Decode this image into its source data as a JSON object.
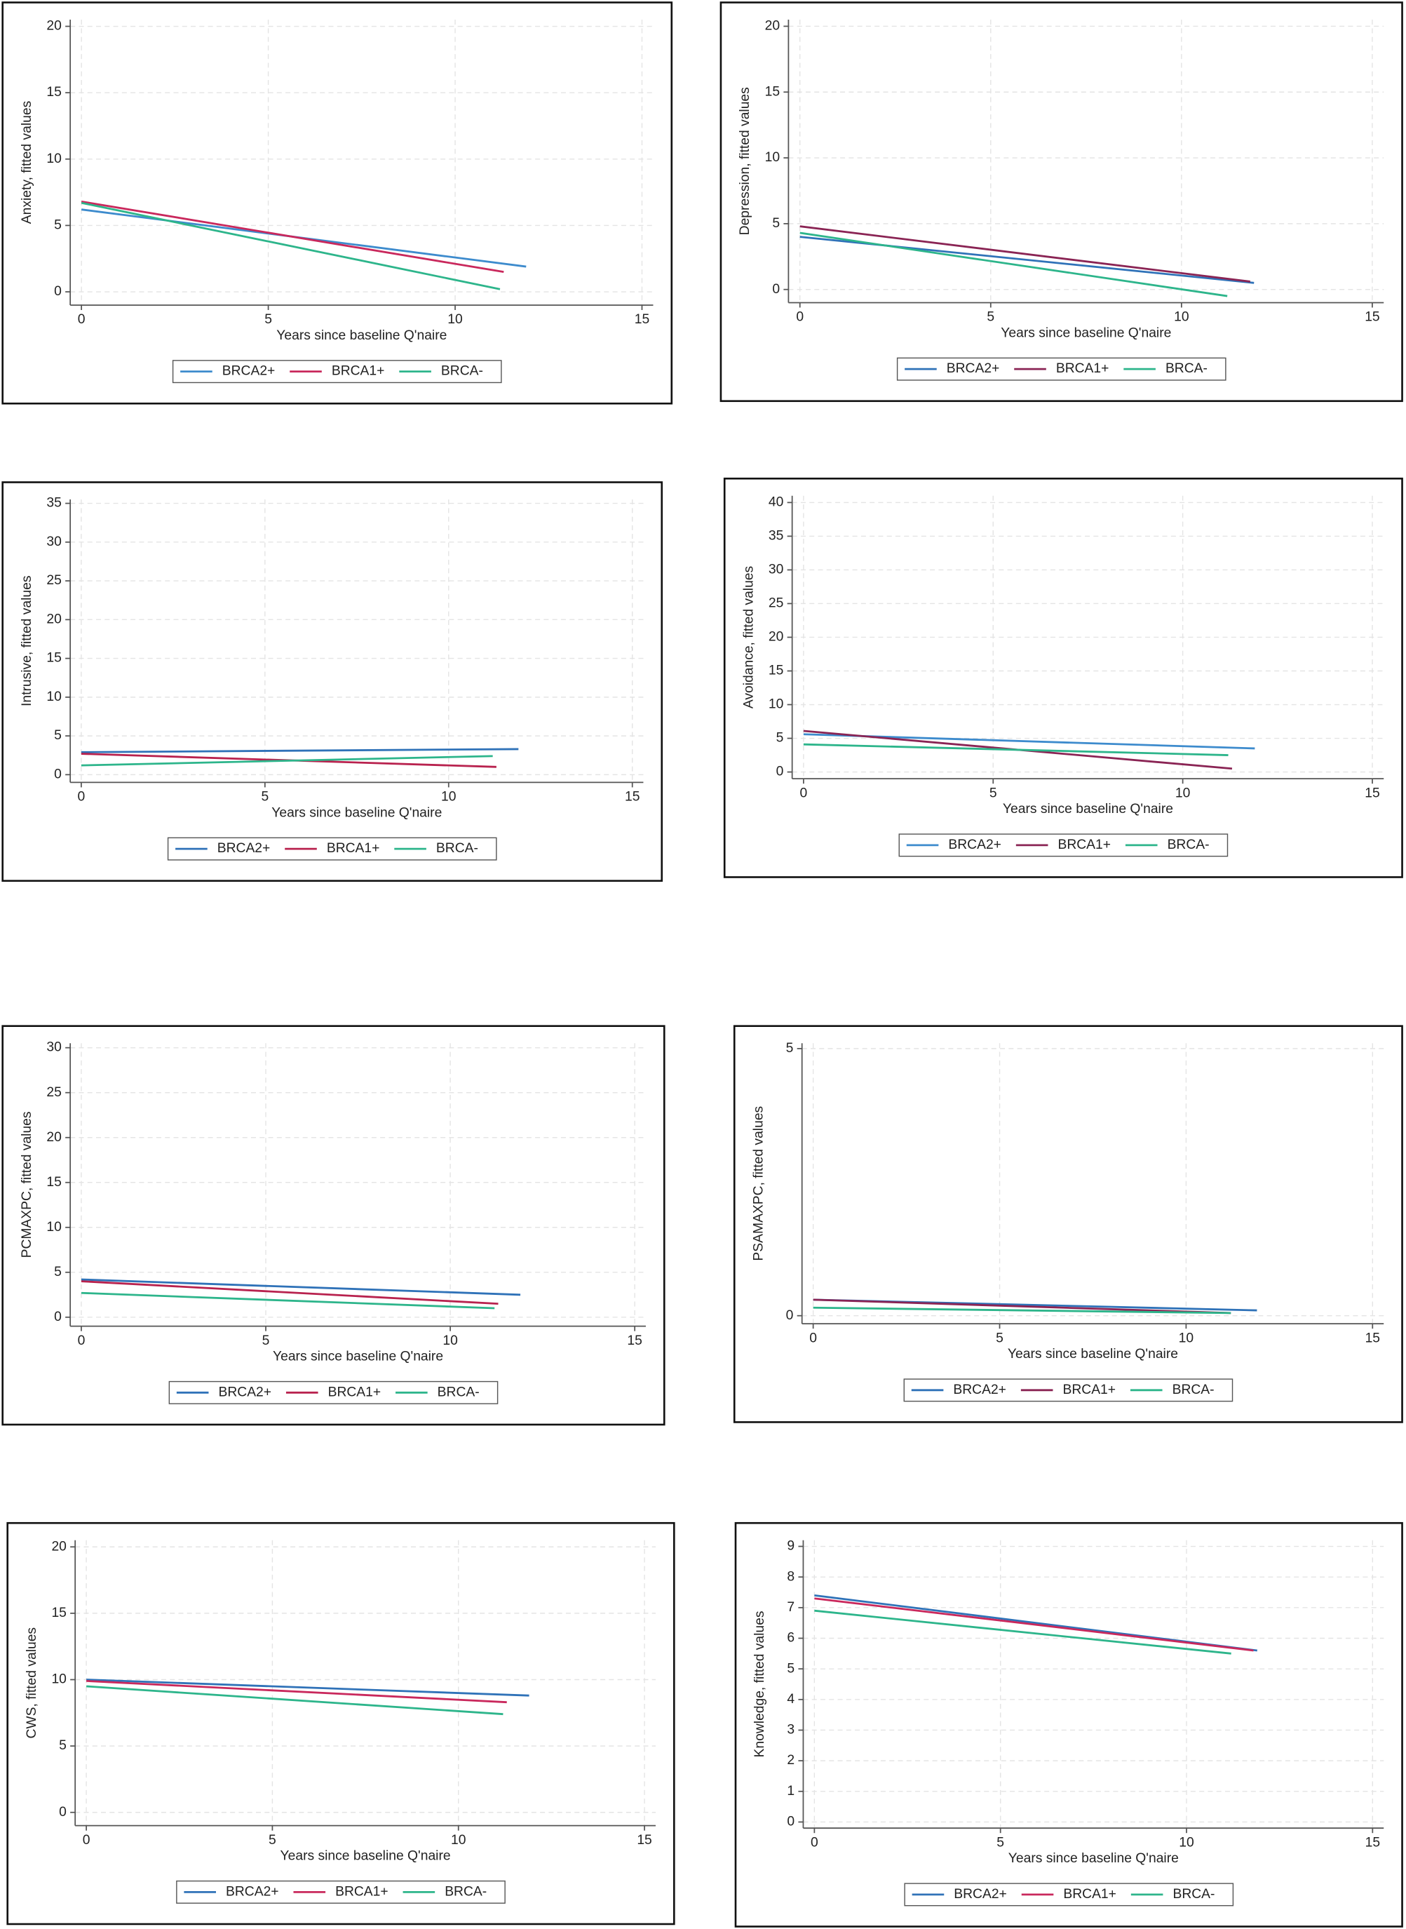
{
  "chart_data": [
    {
      "type": "line",
      "ylabel": "Anxiety, fitted values",
      "xlabel": "Years since baseline Q'naire",
      "xlim": [
        -0.3,
        15.3
      ],
      "xticks": [
        0,
        5,
        10,
        15
      ],
      "ylim": [
        -1,
        20.5
      ],
      "yticks": [
        0,
        5,
        10,
        15,
        20
      ],
      "grid": true,
      "legend": "bottom",
      "series": [
        {
          "name": "BRCA2+",
          "color": "#3d8bcd",
          "x": [
            0,
            11.9
          ],
          "values": [
            6.2,
            1.9
          ]
        },
        {
          "name": "BRCA1+",
          "color": "#c9285c",
          "x": [
            0,
            11.3
          ],
          "values": [
            6.8,
            1.5
          ]
        },
        {
          "name": "BRCA-",
          "color": "#2db58b",
          "x": [
            0,
            11.2
          ],
          "values": [
            6.7,
            0.2
          ]
        }
      ]
    },
    {
      "type": "line",
      "ylabel": "Depression, fitted values",
      "xlabel": "Years since baseline Q'naire",
      "xlim": [
        -0.3,
        15.3
      ],
      "xticks": [
        0,
        5,
        10,
        15
      ],
      "ylim": [
        -1,
        20.5
      ],
      "yticks": [
        0,
        5,
        10,
        15,
        20
      ],
      "grid": true,
      "legend": "bottom",
      "series": [
        {
          "name": "BRCA2+",
          "color": "#2f72b8",
          "x": [
            0,
            11.9
          ],
          "values": [
            4.0,
            0.5
          ]
        },
        {
          "name": "BRCA1+",
          "color": "#8a2454",
          "x": [
            0,
            11.8
          ],
          "values": [
            4.8,
            0.6
          ]
        },
        {
          "name": "BRCA-",
          "color": "#2db58b",
          "x": [
            0,
            11.2
          ],
          "values": [
            4.3,
            -0.5
          ]
        }
      ]
    },
    {
      "type": "line",
      "ylabel": "Intrusive, fitted values",
      "xlabel": "Years since baseline Q'naire",
      "xlim": [
        -0.3,
        15.3
      ],
      "xticks": [
        0,
        5,
        10,
        15
      ],
      "ylim": [
        -1,
        35.5
      ],
      "yticks": [
        0,
        5,
        10,
        15,
        20,
        25,
        30,
        35
      ],
      "grid": true,
      "legend": "bottom",
      "series": [
        {
          "name": "BRCA2+",
          "color": "#2f72b8",
          "x": [
            0,
            11.9
          ],
          "values": [
            2.9,
            3.3
          ]
        },
        {
          "name": "BRCA1+",
          "color": "#b8224e",
          "x": [
            0,
            11.3
          ],
          "values": [
            2.7,
            1.0
          ]
        },
        {
          "name": "BRCA-",
          "color": "#2db58b",
          "x": [
            0,
            11.2
          ],
          "values": [
            1.2,
            2.4
          ]
        }
      ]
    },
    {
      "type": "line",
      "ylabel": "Avoidance, fitted values",
      "xlabel": "Years since baseline Q'naire",
      "xlim": [
        -0.3,
        15.3
      ],
      "xticks": [
        0,
        5,
        10,
        15
      ],
      "ylim": [
        -1,
        41
      ],
      "yticks": [
        0,
        5,
        10,
        15,
        20,
        25,
        30,
        35,
        40
      ],
      "grid": true,
      "legend": "bottom",
      "series": [
        {
          "name": "BRCA2+",
          "color": "#3d8bcd",
          "x": [
            0,
            11.9
          ],
          "values": [
            5.6,
            3.5
          ]
        },
        {
          "name": "BRCA1+",
          "color": "#8a2454",
          "x": [
            0,
            11.3
          ],
          "values": [
            6.1,
            0.5
          ]
        },
        {
          "name": "BRCA-",
          "color": "#2db58b",
          "x": [
            0,
            11.2
          ],
          "values": [
            4.1,
            2.5
          ]
        }
      ]
    },
    {
      "type": "line",
      "ylabel": "PCMAXPC, fitted values",
      "xlabel": "Years since baseline Q'naire",
      "xlim": [
        -0.3,
        15.3
      ],
      "xticks": [
        0,
        5,
        10,
        15
      ],
      "ylim": [
        -1,
        30.5
      ],
      "yticks": [
        0,
        5,
        10,
        15,
        20,
        25,
        30
      ],
      "grid": true,
      "legend": "bottom",
      "series": [
        {
          "name": "BRCA2+",
          "color": "#2f72b8",
          "x": [
            0,
            11.9
          ],
          "values": [
            4.2,
            2.5
          ]
        },
        {
          "name": "BRCA1+",
          "color": "#b8224e",
          "x": [
            0,
            11.3
          ],
          "values": [
            4.0,
            1.5
          ]
        },
        {
          "name": "BRCA-",
          "color": "#2db58b",
          "x": [
            0,
            11.2
          ],
          "values": [
            2.7,
            1.0
          ]
        }
      ]
    },
    {
      "type": "line",
      "ylabel": "PSAMAXPC, fitted values",
      "xlabel": "Years since baseline Q'naire",
      "xlim": [
        -0.3,
        15.3
      ],
      "xticks": [
        0,
        5,
        10,
        15
      ],
      "ylim": [
        -0.15,
        5.1
      ],
      "yticks": [
        0,
        5
      ],
      "grid": true,
      "legend": "bottom",
      "series": [
        {
          "name": "BRCA2+",
          "color": "#2f72b8",
          "x": [
            0,
            11.9
          ],
          "values": [
            0.3,
            0.1
          ]
        },
        {
          "name": "BRCA1+",
          "color": "#8a2454",
          "x": [
            0,
            11.2
          ],
          "values": [
            0.3,
            0.05
          ]
        },
        {
          "name": "BRCA-",
          "color": "#2db58b",
          "x": [
            0,
            11.2
          ],
          "values": [
            0.15,
            0.05
          ]
        }
      ]
    },
    {
      "type": "line",
      "ylabel": "CWS, fitted values",
      "xlabel": "Years since baseline Q'naire",
      "xlim": [
        -0.3,
        15.3
      ],
      "xticks": [
        0,
        5,
        10,
        15
      ],
      "ylim": [
        -1,
        20.5
      ],
      "yticks": [
        0,
        5,
        10,
        15,
        20
      ],
      "grid": true,
      "legend": "bottom",
      "series": [
        {
          "name": "BRCA2+",
          "color": "#2f72b8",
          "x": [
            0,
            11.9
          ],
          "values": [
            10.0,
            8.8
          ]
        },
        {
          "name": "BRCA1+",
          "color": "#c9285c",
          "x": [
            0,
            11.3
          ],
          "values": [
            9.9,
            8.3
          ]
        },
        {
          "name": "BRCA-",
          "color": "#2db58b",
          "x": [
            0,
            11.2
          ],
          "values": [
            9.5,
            7.4
          ]
        }
      ]
    },
    {
      "type": "line",
      "ylabel": "Knowledge, fitted values",
      "xlabel": "Years since baseline Q'naire",
      "xlim": [
        -0.3,
        15.3
      ],
      "xticks": [
        0,
        5,
        10,
        15
      ],
      "ylim": [
        -0.2,
        9.2
      ],
      "yticks": [
        0,
        1,
        2,
        3,
        4,
        5,
        6,
        7,
        8,
        9
      ],
      "grid": true,
      "legend": "bottom",
      "series": [
        {
          "name": "BRCA2+",
          "color": "#2f72b8",
          "x": [
            0,
            11.9
          ],
          "values": [
            7.4,
            5.6
          ]
        },
        {
          "name": "BRCA1+",
          "color": "#c9285c",
          "x": [
            0,
            11.8
          ],
          "values": [
            7.3,
            5.6
          ]
        },
        {
          "name": "BRCA-",
          "color": "#2db58b",
          "x": [
            0,
            11.2
          ],
          "values": [
            6.9,
            5.5
          ]
        }
      ]
    }
  ]
}
